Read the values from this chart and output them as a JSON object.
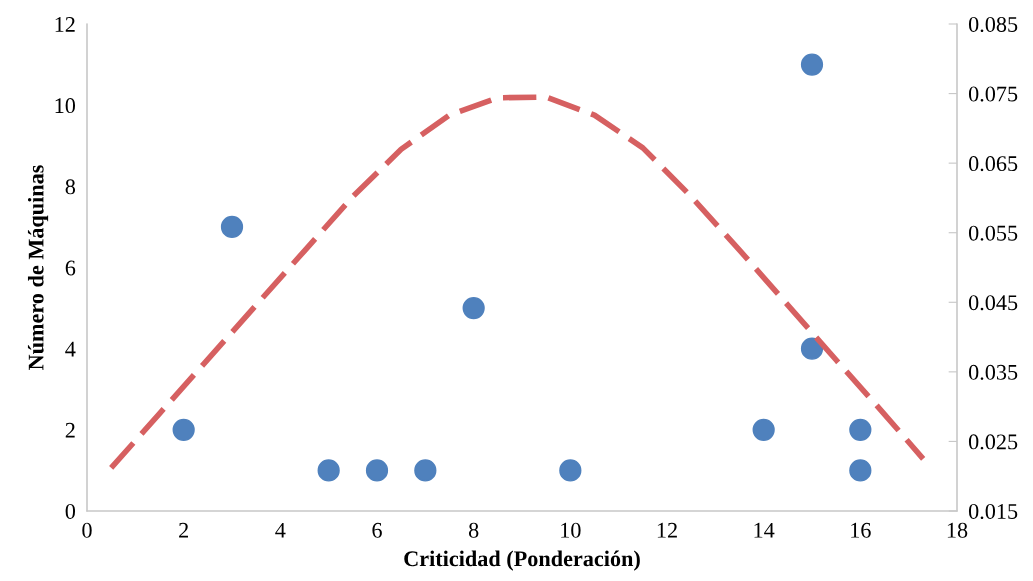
{
  "chart_data": {
    "type": "scatter",
    "xlabel": "Criticidad (Ponderación)",
    "ylabel": "Número de Máquinas",
    "xlim": [
      0,
      18
    ],
    "xticks": [
      0,
      2,
      4,
      6,
      8,
      10,
      12,
      14,
      16,
      18
    ],
    "ylim": [
      0,
      12
    ],
    "yticks": [
      0,
      2,
      4,
      6,
      8,
      10,
      12
    ],
    "y2lim": [
      0.015,
      0.085
    ],
    "y2ticks": [
      0.015,
      0.025,
      0.035,
      0.045,
      0.055,
      0.065,
      0.075,
      0.085
    ],
    "grid": false,
    "series": [
      {
        "color": "#4f81bd",
        "marker": "circle",
        "x": [
          2,
          3,
          5,
          6,
          7,
          8,
          10,
          14,
          15,
          15,
          16,
          16
        ],
        "values": [
          2,
          7,
          1,
          1,
          1,
          5,
          1,
          2,
          11,
          4,
          2,
          1
        ]
      },
      {
        "type": "line",
        "axis": "y2",
        "color": "#d66061",
        "line_style": "dashed",
        "marker": "none",
        "x": [
          0.5,
          1.5,
          2.5,
          3.5,
          4.5,
          5.5,
          6.5,
          7.5,
          8.5,
          9.5,
          10.5,
          11.5,
          12.5,
          13.5,
          14.5,
          15.5,
          16.5,
          17.3
        ],
        "values": [
          0.0212,
          0.029,
          0.0368,
          0.0446,
          0.0524,
          0.0602,
          0.067,
          0.0719,
          0.0744,
          0.0745,
          0.0719,
          0.0672,
          0.0602,
          0.0525,
          0.0446,
          0.0367,
          0.0289,
          0.0225
        ]
      }
    ]
  }
}
